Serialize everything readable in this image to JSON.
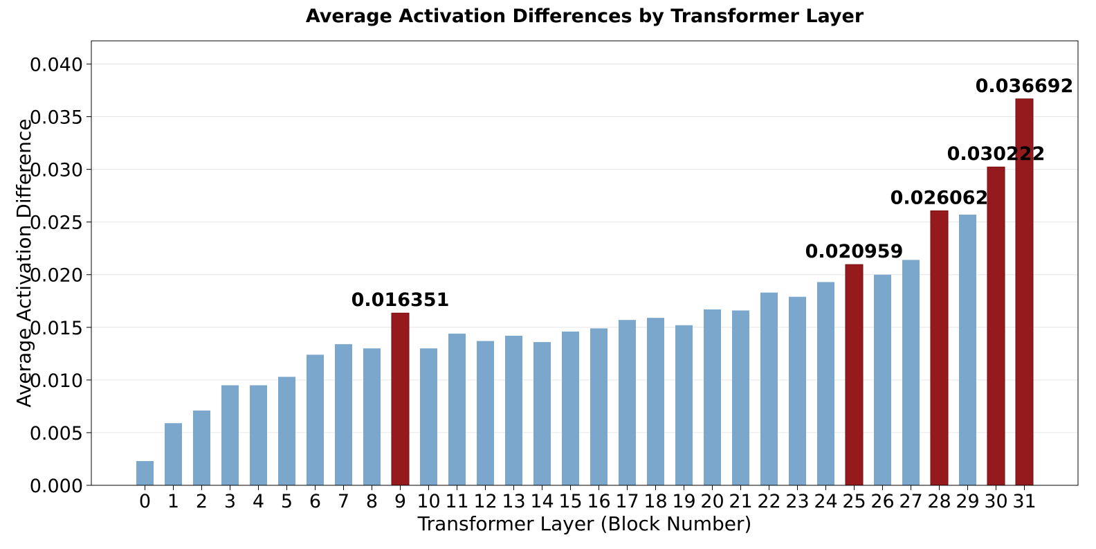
{
  "chart_data": {
    "type": "bar",
    "title": "Average Activation Differences by Transformer Layer",
    "xlabel": "Transformer Layer (Block Number)",
    "ylabel": "Average Activation Difference",
    "categories": [
      "0",
      "1",
      "2",
      "3",
      "4",
      "5",
      "6",
      "7",
      "8",
      "9",
      "10",
      "11",
      "12",
      "13",
      "14",
      "15",
      "16",
      "17",
      "18",
      "19",
      "20",
      "21",
      "22",
      "23",
      "24",
      "25",
      "26",
      "27",
      "28",
      "29",
      "30",
      "31"
    ],
    "values": [
      0.0023,
      0.0059,
      0.0071,
      0.0095,
      0.0095,
      0.0103,
      0.0124,
      0.0134,
      0.013,
      0.016351,
      0.013,
      0.0144,
      0.0137,
      0.0142,
      0.0136,
      0.0146,
      0.0149,
      0.0157,
      0.0159,
      0.0152,
      0.0167,
      0.0166,
      0.0183,
      0.0179,
      0.0193,
      0.020959,
      0.02,
      0.0214,
      0.026062,
      0.0257,
      0.030222,
      0.036692
    ],
    "highlighted": [
      9,
      25,
      28,
      30,
      31
    ],
    "data_labels": [
      {
        "index": 9,
        "text": "0.016351"
      },
      {
        "index": 25,
        "text": "0.020959"
      },
      {
        "index": 28,
        "text": "0.026062"
      },
      {
        "index": 30,
        "text": "0.030222"
      },
      {
        "index": 31,
        "text": "0.036692"
      }
    ],
    "ylim": [
      0,
      0.0422
    ],
    "yticks": [
      0.0,
      0.005,
      0.01,
      0.015,
      0.02,
      0.025,
      0.03,
      0.035,
      0.04
    ],
    "ytick_labels": [
      "0.000",
      "0.005",
      "0.010",
      "0.015",
      "0.020",
      "0.025",
      "0.030",
      "0.035",
      "0.040"
    ],
    "grid": "y",
    "colors": {
      "bar": "#7ba7cc",
      "highlight": "#951a1d",
      "highlight_edge": "#7a0c0c",
      "grid": "#e6e6e6",
      "axis": "#000000"
    }
  }
}
